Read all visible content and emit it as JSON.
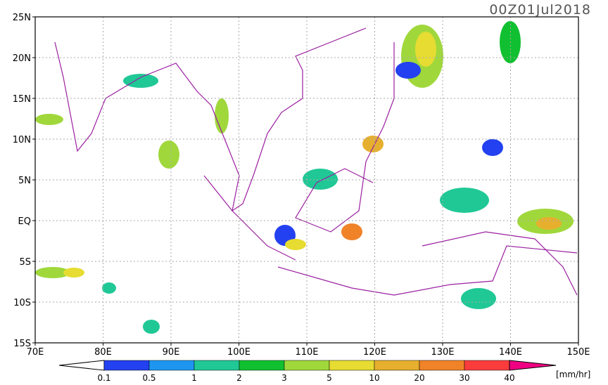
{
  "title": "00Z01Jul2018",
  "map": {
    "lon_labels": [
      "70E",
      "80E",
      "90E",
      "100E",
      "110E",
      "120E",
      "130E",
      "140E",
      "150E"
    ],
    "lat_labels": [
      "25N",
      "20N",
      "15N",
      "10N",
      "5N",
      "EQ",
      "5S",
      "10S",
      "15S"
    ],
    "grid": true
  },
  "colorbar": {
    "labels": [
      "0.1",
      "0.5",
      "1",
      "2",
      "3",
      "5",
      "10",
      "20",
      "30",
      "40"
    ],
    "under_color": "#ffffff",
    "colors": [
      "#2341f0",
      "#1e96f0",
      "#20c896",
      "#10c030",
      "#a0d83c",
      "#e6dc32",
      "#e6af2d",
      "#f08228",
      "#fa3c3c"
    ],
    "over_color": "#f00082",
    "unit": "[mm/hr]"
  }
}
